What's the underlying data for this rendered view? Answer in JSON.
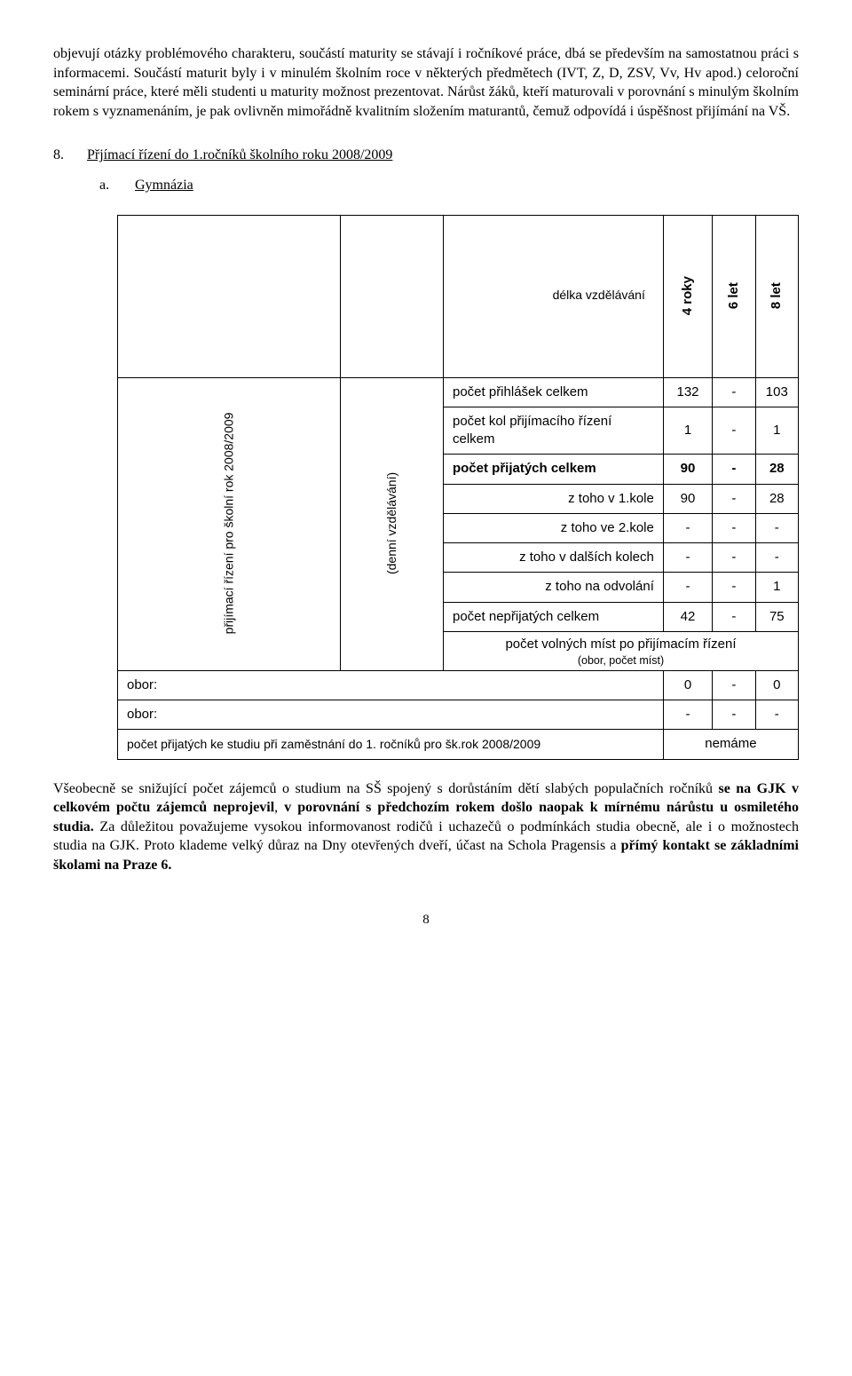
{
  "para1": "objevují otázky problémového charakteru, součástí maturity se stávají i ročníkové práce, dbá se především na samostatnou práci s informacemi. Součástí maturit byly i v minulém školním roce v některých předmětech (IVT, Z, D, ZSV, Vv, Hv apod.) celoroční seminární práce, které měli studenti u maturity možnost prezentovat. Nárůst žáků, kteří maturovali v porovnání s minulým školním rokem s vyznamenáním, je pak ovlivněn mimořádně kvalitním složením maturantů, čemuž odpovídá i úspěšnost přijímání na VŠ.",
  "section": {
    "num": "8.",
    "label": "Přjímací řízení do 1.ročníků školního roku 2008/2009"
  },
  "subsection": {
    "num": "a.",
    "label": "Gymnázia"
  },
  "table": {
    "vlabel1": "přijímací řízení pro školní rok 2008/2009",
    "vlabel2": "(denní vzdělávání)",
    "headers": {
      "col_len": "délka vzdělávání",
      "col4": "4 roky",
      "col6": "6 let",
      "col8": "8 let"
    },
    "rows": [
      {
        "label": "počet přihlášek celkem",
        "align": "left",
        "bold": false,
        "c4": "132",
        "c6": "-",
        "c8": "103"
      },
      {
        "label": "počet kol přijímacího řízení celkem",
        "align": "left",
        "bold": false,
        "c4": "1",
        "c6": "-",
        "c8": "1"
      },
      {
        "label": "počet přijatých celkem",
        "align": "left",
        "bold": true,
        "c4": "90",
        "c6": "-",
        "c8": "28"
      },
      {
        "label": "z toho v 1.kole",
        "align": "right",
        "bold": false,
        "c4": "90",
        "c6": "-",
        "c8": "28"
      },
      {
        "label": "z toho ve 2.kole",
        "align": "right",
        "bold": false,
        "c4": "-",
        "c6": "-",
        "c8": "-"
      },
      {
        "label": "z toho v dalších kolech",
        "align": "right",
        "bold": false,
        "c4": "-",
        "c6": "-",
        "c8": "-"
      },
      {
        "label": "z toho na odvolání",
        "align": "right",
        "bold": false,
        "c4": "-",
        "c6": "-",
        "c8": "1"
      },
      {
        "label": "počet nepřijatých celkem",
        "align": "left",
        "bold": false,
        "c4": "42",
        "c6": "-",
        "c8": "75"
      }
    ],
    "spanrow": {
      "line1": "počet volných míst po přijímacím řízení",
      "line2": "(obor, počet míst)"
    },
    "oborRows": [
      {
        "label": "obor:",
        "c4": "0",
        "c6": "-",
        "c8": "0"
      },
      {
        "label": "obor:",
        "c4": "-",
        "c6": "-",
        "c8": "-"
      }
    ],
    "footRow": {
      "label": "počet přijatých ke studiu při zaměstnání do 1. ročníků pro šk.rok 2008/2009",
      "val": "nemáme"
    }
  },
  "para2": {
    "t1": "Všeobecně se snižující počet zájemců o studium na SŠ spojený s dorůstáním dětí slabých populačních ročníků ",
    "b1": "se na GJK v celkovém počtu zájemců neprojevil",
    "t2": ", ",
    "b2": "v porovnání s předchozím rokem došlo naopak k mírnému nárůstu u osmiletého studia.",
    "t3": " Za důležitou považujeme vysokou informovanost rodičů i uchazečů o podmínkách studia obecně, ale i o možnostech studia na GJK. Proto klademe velký důraz na Dny otevřených dveří, účast na Schola Pragensis a ",
    "b3": "přímý kontakt se základními školami na Praze 6."
  },
  "pageNum": "8"
}
